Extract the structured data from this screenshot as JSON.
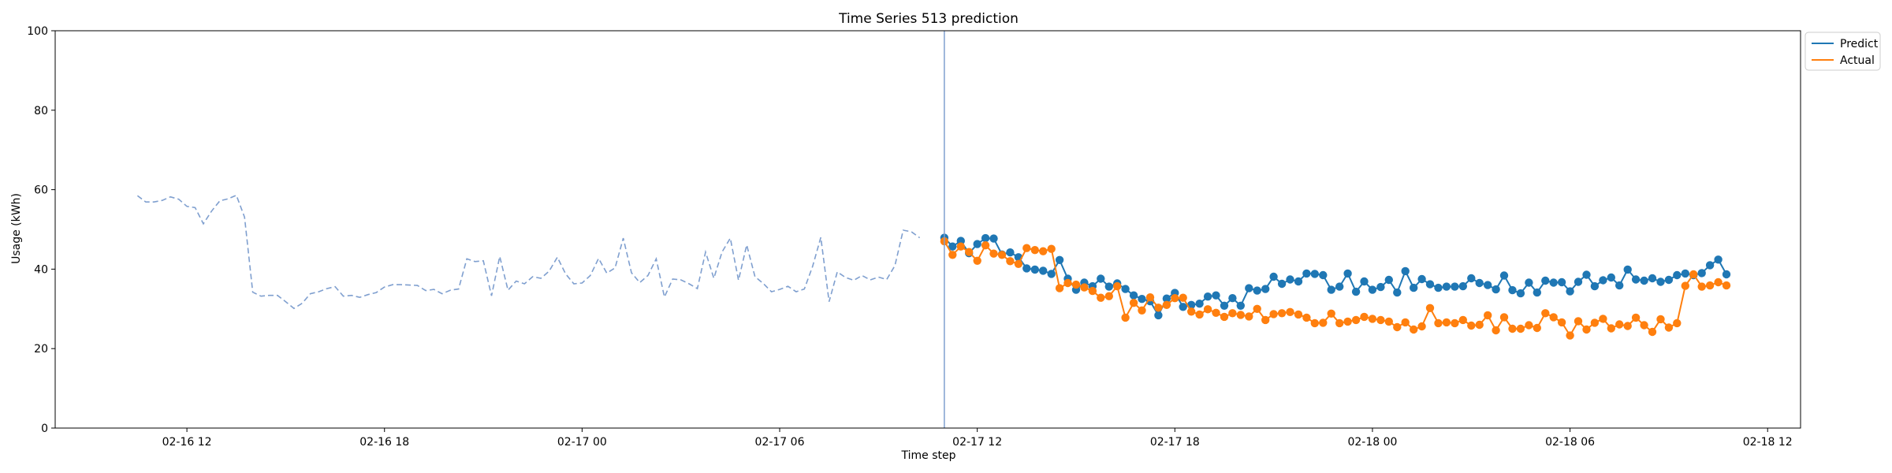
{
  "chart_data": {
    "type": "line",
    "title": "Time Series 513 prediction",
    "xlabel": "Time step",
    "ylabel": "Usage (kWh)",
    "ylim": [
      0,
      100
    ],
    "y_ticks": [
      0,
      20,
      40,
      60,
      80,
      100
    ],
    "x_axis": {
      "unit": "hour",
      "range": [
        "02-16 08:00",
        "02-18 13:00"
      ],
      "ticks": [
        "02-16 12",
        "02-16 18",
        "02-17 00",
        "02-17 06",
        "02-17 12",
        "02-17 18",
        "02-18 00",
        "02-18 06",
        "02-18 12"
      ]
    },
    "forecast_start": "02-17 11:00",
    "legend": {
      "position": "top-right-outside",
      "entries": [
        "Predict",
        "Actual"
      ]
    },
    "grid": false,
    "colors": {
      "history": "#7f9fcf",
      "predict": "#1f77b4",
      "actual": "#ff7f0e",
      "split_line": "#7f9fcf"
    },
    "series": [
      {
        "role": "history",
        "style": "dashed",
        "x_start": "02-16 10:30",
        "interval_minutes": 15,
        "values": [
          58.5,
          56.9,
          56.9,
          57.3,
          58.2,
          57.6,
          55.8,
          55.5,
          51.4,
          54.6,
          57.2,
          57.7,
          58.6,
          53.1,
          34.2,
          33.2,
          33.4,
          33.4,
          31.8,
          30.1,
          31.4,
          33.8,
          34.3,
          35.1,
          35.6,
          33.2,
          33.4,
          32.9,
          33.6,
          34.1,
          35.5,
          36.1,
          36.1,
          36.0,
          35.9,
          34.6,
          34.9,
          33.8,
          34.7,
          35.0,
          42.6,
          41.9,
          42.1,
          33.3,
          43.2,
          34.7,
          37.0,
          36.3,
          38.1,
          37.7,
          39.5,
          43.0,
          38.8,
          36.3,
          36.5,
          38.4,
          42.7,
          39.0,
          40.3,
          47.8,
          39.1,
          36.6,
          38.4,
          42.6,
          33.0,
          37.5,
          37.3,
          36.3,
          35.1,
          44.3,
          37.7,
          44.3,
          47.8,
          37.2,
          46.1,
          38.1,
          36.4,
          34.3,
          34.9,
          35.7,
          34.3,
          35.0,
          40.7,
          48.0,
          31.8,
          39.3,
          37.9,
          37.2,
          38.4,
          37.3,
          38.0,
          37.4,
          40.9,
          49.8,
          49.4,
          47.9
        ]
      },
      {
        "name": "Predict",
        "style": "solid-markers",
        "x_start": "02-17 11:00",
        "interval_minutes": 15,
        "values": [
          47.9,
          45.7,
          47.1,
          44.0,
          46.3,
          47.8,
          47.7,
          43.7,
          44.2,
          43.0,
          40.2,
          39.9,
          39.6,
          38.8,
          42.3,
          37.6,
          34.8,
          36.6,
          35.7,
          37.6,
          35.6,
          36.4,
          35.0,
          33.4,
          32.5,
          31.9,
          28.4,
          32.6,
          34.0,
          30.5,
          31.0,
          31.3,
          33.1,
          33.4,
          30.8,
          32.7,
          30.8,
          35.2,
          34.6,
          35.0,
          38.1,
          36.3,
          37.4,
          36.9,
          38.9,
          38.8,
          38.5,
          34.8,
          35.6,
          38.9,
          34.3,
          36.9,
          34.8,
          35.5,
          37.3,
          34.1,
          39.5,
          35.3,
          37.5,
          36.2,
          35.3,
          35.6,
          35.6,
          35.7,
          37.7,
          36.5,
          36.0,
          34.9,
          38.4,
          34.7,
          33.9,
          36.6,
          34.1,
          37.1,
          36.6,
          36.7,
          34.4,
          36.8,
          38.6,
          35.7,
          37.2,
          37.9,
          35.9,
          39.9,
          37.4,
          37.1,
          37.7,
          36.8,
          37.3,
          38.5,
          38.9,
          38.5,
          39.0,
          41.0,
          42.4,
          38.7
        ]
      },
      {
        "name": "Actual",
        "style": "solid-markers",
        "x_start": "02-17 11:00",
        "interval_minutes": 15,
        "values": [
          47.0,
          43.6,
          45.7,
          44.3,
          42.1,
          46.0,
          43.9,
          43.6,
          42.0,
          41.3,
          45.3,
          44.8,
          44.5,
          45.1,
          35.2,
          36.5,
          36.1,
          35.4,
          34.5,
          32.8,
          33.2,
          35.7,
          27.8,
          31.5,
          29.6,
          32.9,
          30.3,
          31.0,
          32.7,
          32.8,
          29.3,
          28.6,
          29.9,
          29.0,
          28.0,
          28.9,
          28.5,
          28.1,
          30.0,
          27.2,
          28.7,
          28.9,
          29.2,
          28.6,
          27.8,
          26.4,
          26.5,
          28.8,
          26.4,
          26.8,
          27.2,
          28.0,
          27.5,
          27.2,
          26.8,
          25.4,
          26.6,
          24.8,
          25.6,
          30.2,
          26.4,
          26.6,
          26.4,
          27.2,
          25.8,
          26.0,
          28.4,
          24.6,
          27.9,
          25.0,
          25.0,
          25.9,
          25.2,
          28.9,
          27.9,
          26.6,
          23.3,
          26.9,
          24.8,
          26.5,
          27.5,
          25.1,
          26.1,
          25.7,
          27.8,
          25.9,
          24.2,
          27.4,
          25.3,
          26.4,
          35.8,
          38.7,
          35.6,
          35.9,
          36.7,
          35.9
        ]
      }
    ]
  }
}
